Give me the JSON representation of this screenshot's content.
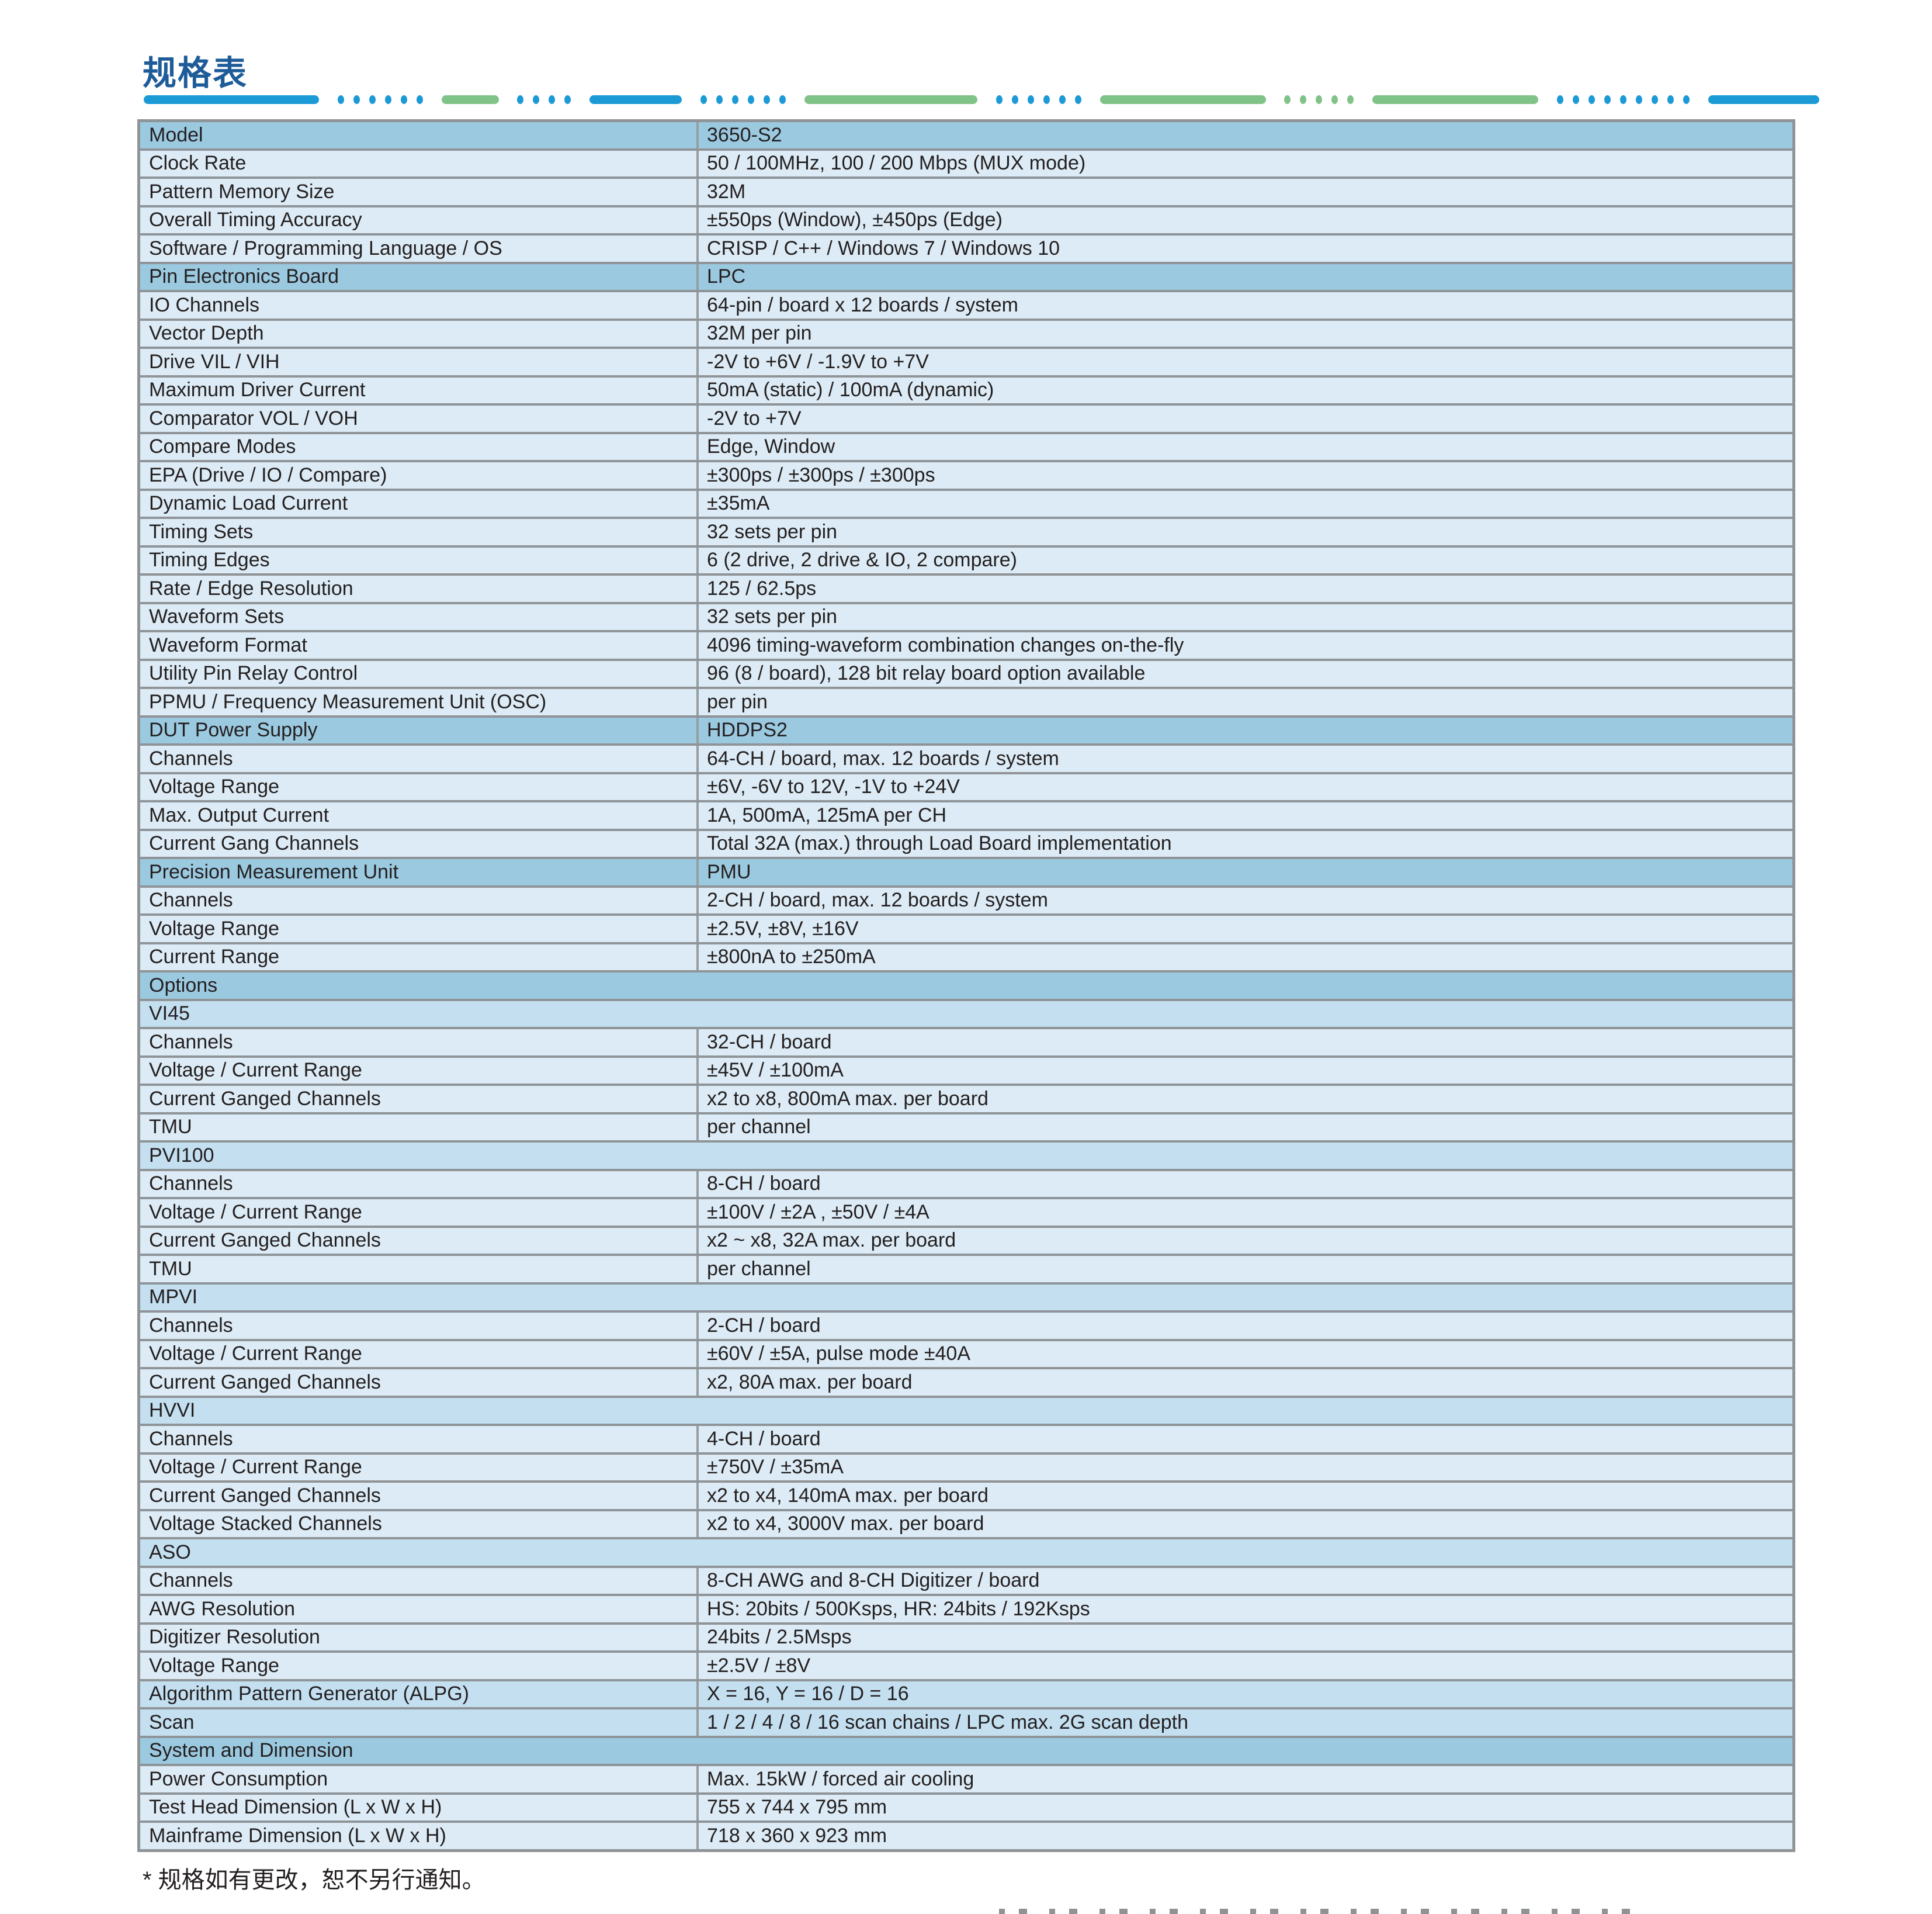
{
  "page": {
    "title": "规格表",
    "footnote": "* 规格如有更改，恕不另行通知。"
  },
  "colors": {
    "title_blue": "#1e5c99",
    "separator_blue": "#1b9ad6",
    "separator_green": "#80c389",
    "header_row_bg": "#9bc9e0",
    "subheader_row_bg": "#c3dff0",
    "data_row_bg": "#dcebf5",
    "table_border_gray": "#8f9498",
    "text_color": "#231f20"
  },
  "table": {
    "rows": [
      {
        "type": "header",
        "label": "Model",
        "value": "3650-S2"
      },
      {
        "type": "row",
        "label": "Clock Rate",
        "value": "50 / 100MHz, 100 / 200 Mbps (MUX mode)"
      },
      {
        "type": "row",
        "label": "Pattern Memory Size",
        "value": "32M"
      },
      {
        "type": "row",
        "label": "Overall Timing Accuracy",
        "value": "±550ps (Window), ±450ps (Edge)"
      },
      {
        "type": "row",
        "label": "Software / Programming Language / OS",
        "value": "CRISP / C++ / Windows 7 / Windows 10"
      },
      {
        "type": "header",
        "label": "Pin Electronics Board",
        "value": "LPC"
      },
      {
        "type": "row",
        "label": "IO Channels",
        "value": "64-pin / board x 12 boards / system"
      },
      {
        "type": "row",
        "label": "Vector Depth",
        "value": "32M per pin"
      },
      {
        "type": "row",
        "label": "Drive VIL / VIH",
        "value": "-2V to +6V / -1.9V to +7V"
      },
      {
        "type": "row",
        "label": "Maximum Driver Current",
        "value": "50mA (static) / 100mA (dynamic)"
      },
      {
        "type": "row",
        "label": "Comparator VOL / VOH",
        "value": "-2V to +7V"
      },
      {
        "type": "row",
        "label": "Compare Modes",
        "value": "Edge, Window"
      },
      {
        "type": "row",
        "label": "EPA (Drive / IO / Compare)",
        "value": "±300ps / ±300ps / ±300ps"
      },
      {
        "type": "row",
        "label": "Dynamic Load Current",
        "value": "±35mA"
      },
      {
        "type": "row",
        "label": "Timing Sets",
        "value": "32 sets per pin"
      },
      {
        "type": "row",
        "label": "Timing Edges",
        "value": "6 (2 drive, 2 drive & IO, 2 compare)"
      },
      {
        "type": "row",
        "label": "Rate / Edge Resolution",
        "value": "125 / 62.5ps"
      },
      {
        "type": "row",
        "label": "Waveform Sets",
        "value": "32 sets per pin"
      },
      {
        "type": "row",
        "label": "Waveform Format",
        "value": "4096 timing-waveform combination changes on-the-fly"
      },
      {
        "type": "row",
        "label": "Utility Pin Relay Control",
        "value": "96 (8 / board), 128 bit relay board option available"
      },
      {
        "type": "row",
        "label": "PPMU / Frequency Measurement Unit (OSC)",
        "value": "per pin"
      },
      {
        "type": "header",
        "label": "DUT Power Supply",
        "value": "HDDPS2"
      },
      {
        "type": "row",
        "label": "Channels",
        "value": "64-CH / board, max. 12 boards / system"
      },
      {
        "type": "row",
        "label": "Voltage Range",
        "value": "±6V, -6V to 12V, -1V to +24V"
      },
      {
        "type": "row",
        "label": "Max. Output Current",
        "value": "1A, 500mA, 125mA per CH"
      },
      {
        "type": "row",
        "label": "Current Gang Channels",
        "value": "Total 32A (max.) through Load Board implementation"
      },
      {
        "type": "header",
        "label": "Precision Measurement Unit",
        "value": "PMU"
      },
      {
        "type": "row",
        "label": "Channels",
        "value": "2-CH / board, max. 12 boards / system"
      },
      {
        "type": "row",
        "label": "Voltage Range",
        "value": "±2.5V, ±8V, ±16V"
      },
      {
        "type": "row",
        "label": "Current Range",
        "value": "±800nA to ±250mA"
      },
      {
        "type": "header-full",
        "label": "Options"
      },
      {
        "type": "subheader",
        "label": "VI45"
      },
      {
        "type": "row",
        "label": "Channels",
        "value": "32-CH / board"
      },
      {
        "type": "row",
        "label": "Voltage / Current Range",
        "value": "±45V / ±100mA"
      },
      {
        "type": "row",
        "label": "Current Ganged Channels",
        "value": "x2 to x8, 800mA max. per board"
      },
      {
        "type": "row",
        "label": "TMU",
        "value": "per channel"
      },
      {
        "type": "subheader",
        "label": "PVI100"
      },
      {
        "type": "row",
        "label": "Channels",
        "value": "8-CH /  board"
      },
      {
        "type": "row",
        "label": "Voltage / Current Range",
        "value": "±100V / ±2A , ±50V / ±4A"
      },
      {
        "type": "row",
        "label": "Current Ganged Channels",
        "value": "x2 ~ x8, 32A max. per board"
      },
      {
        "type": "row",
        "label": "TMU",
        "value": "per channel"
      },
      {
        "type": "subheader",
        "label": "MPVI"
      },
      {
        "type": "row",
        "label": "Channels",
        "value": "2-CH / board"
      },
      {
        "type": "row",
        "label": "Voltage / Current Range",
        "value": "±60V / ±5A, pulse mode ±40A"
      },
      {
        "type": "row",
        "label": "Current Ganged Channels",
        "value": "x2, 80A max. per board"
      },
      {
        "type": "subheader",
        "label": "HVVI"
      },
      {
        "type": "row",
        "label": "Channels",
        "value": "4-CH / board"
      },
      {
        "type": "row",
        "label": "Voltage / Current Range",
        "value": "±750V / ±35mA"
      },
      {
        "type": "row",
        "label": "Current Ganged Channels",
        "value": "x2 to x4, 140mA max. per board"
      },
      {
        "type": "row",
        "label": "Voltage Stacked Channels",
        "value": "x2 to x4, 3000V max. per board"
      },
      {
        "type": "subheader",
        "label": "ASO"
      },
      {
        "type": "row",
        "label": "Channels",
        "value": "8-CH AWG and 8-CH Digitizer / board"
      },
      {
        "type": "row",
        "label": "AWG Resolution",
        "value": "HS: 20bits / 500Ksps, HR: 24bits / 192Ksps"
      },
      {
        "type": "row",
        "label": "Digitizer Resolution",
        "value": "24bits / 2.5Msps"
      },
      {
        "type": "row",
        "label": "Voltage Range",
        "value": "±2.5V / ±8V"
      },
      {
        "type": "accent-row",
        "label": "Algorithm Pattern Generator (ALPG)",
        "value": "X = 16, Y = 16 / D = 16"
      },
      {
        "type": "accent-row",
        "label": "Scan",
        "value": "1 / 2 / 4 / 8 / 16 scan chains / LPC max. 2G scan depth"
      },
      {
        "type": "header-full",
        "label": "System and Dimension"
      },
      {
        "type": "row",
        "label": "Power Consumption",
        "value": "Max. 15kW / forced air cooling"
      },
      {
        "type": "row",
        "label": "Test Head Dimension (L x W x H)",
        "value": "755 x 744 x 795 mm"
      },
      {
        "type": "row",
        "label": "Mainframe Dimension (L x W x H)",
        "value": "718 x 360 x 923 mm"
      }
    ]
  }
}
